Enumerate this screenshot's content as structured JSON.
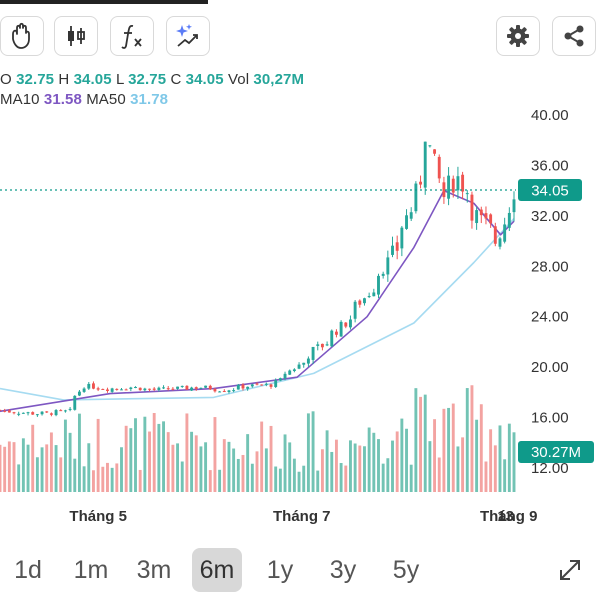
{
  "toolbar": {
    "buttons": [
      {
        "name": "hand-icon"
      },
      {
        "name": "candlestick-icon"
      },
      {
        "name": "function-icon"
      },
      {
        "name": "magic-icon"
      },
      {
        "name": "settings-icon"
      },
      {
        "name": "share-icon"
      }
    ]
  },
  "legend": {
    "o_label": "O",
    "o_value": "32.75",
    "h_label": "H",
    "h_value": "34.05",
    "l_label": "L",
    "l_value": "32.75",
    "c_label": "C",
    "c_value": "34.05",
    "vol_label": "Vol",
    "vol_value": "30,27M",
    "ma10_label": "MA10",
    "ma10_value": "31.58",
    "ma50_label": "MA50",
    "ma50_value": "31.78"
  },
  "colors": {
    "up": "#26a69a",
    "down": "#ef5350",
    "vol_up": "#72c3b4",
    "vol_down": "#f3a3a1",
    "ma10": "#7e57c2",
    "ma50": "#a6dbf1",
    "price_tag": "#0f9a8a"
  },
  "timeframes": {
    "items": [
      "1d",
      "1m",
      "3m",
      "6m",
      "1y",
      "3y",
      "5y"
    ],
    "active": "6m"
  },
  "chart_data": {
    "type": "candlestick",
    "y_ticks": [
      "40.00",
      "36.00",
      "32.00",
      "28.00",
      "24.00",
      "20.00",
      "16.00",
      "12.00"
    ],
    "ylim": [
      12,
      40
    ],
    "x_labels": [
      "Tháng 5",
      "Tháng 7",
      "Tháng 9",
      "13"
    ],
    "x_label_dates": [
      "2024-05-01",
      "2024-07-01",
      "2024-09-01",
      "2024-09-13"
    ],
    "last_price": "34.05",
    "last_volume": "30.27M",
    "ohlc_series": [
      {
        "date": "2024-04-12",
        "close": 16.6
      },
      {
        "date": "2024-04-19",
        "close": 16.4
      },
      {
        "date": "2024-04-26",
        "close": 16.3
      },
      {
        "date": "2024-05-03",
        "close": 16.5
      },
      {
        "date": "2024-05-08",
        "close": 18.5
      },
      {
        "date": "2024-05-15",
        "close": 18.3
      },
      {
        "date": "2024-05-22",
        "close": 18.4
      },
      {
        "date": "2024-05-29",
        "close": 18.2
      },
      {
        "date": "2024-06-05",
        "close": 18.3
      },
      {
        "date": "2024-06-12",
        "close": 18.4
      },
      {
        "date": "2024-06-19",
        "close": 18.2
      },
      {
        "date": "2024-06-26",
        "close": 18.5
      },
      {
        "date": "2024-07-03",
        "close": 18.6
      },
      {
        "date": "2024-07-10",
        "close": 19.9
      },
      {
        "date": "2024-07-17",
        "close": 21.5
      },
      {
        "date": "2024-07-24",
        "close": 23.2
      },
      {
        "date": "2024-07-31",
        "close": 25.5
      },
      {
        "date": "2024-08-07",
        "close": 28.2
      },
      {
        "date": "2024-08-14",
        "close": 32.5
      },
      {
        "date": "2024-08-19",
        "close": 38.6
      },
      {
        "date": "2024-08-23",
        "close": 33.5
      },
      {
        "date": "2024-08-28",
        "close": 35.0
      },
      {
        "date": "2024-09-04",
        "close": 31.5
      },
      {
        "date": "2024-09-09",
        "close": 30.0
      },
      {
        "date": "2024-09-11",
        "close": 31.6
      },
      {
        "date": "2024-09-13",
        "close": 34.05
      }
    ],
    "ma10": [
      {
        "date": "2024-04-12",
        "value": 16.5
      },
      {
        "date": "2024-05-15",
        "value": 17.9
      },
      {
        "date": "2024-06-15",
        "value": 18.3
      },
      {
        "date": "2024-07-10",
        "value": 19.2
      },
      {
        "date": "2024-07-31",
        "value": 24.0
      },
      {
        "date": "2024-08-14",
        "value": 29.5
      },
      {
        "date": "2024-08-23",
        "value": 34.0
      },
      {
        "date": "2024-09-01",
        "value": 33.0
      },
      {
        "date": "2024-09-09",
        "value": 30.5
      },
      {
        "date": "2024-09-13",
        "value": 31.58
      }
    ],
    "ma50": [
      {
        "date": "2024-04-12",
        "value": 18.3
      },
      {
        "date": "2024-05-01",
        "value": 17.4
      },
      {
        "date": "2024-06-15",
        "value": 17.6
      },
      {
        "date": "2024-07-15",
        "value": 19.5
      },
      {
        "date": "2024-08-14",
        "value": 23.5
      },
      {
        "date": "2024-09-01",
        "value": 28.3
      },
      {
        "date": "2024-09-13",
        "value": 31.78
      }
    ]
  }
}
